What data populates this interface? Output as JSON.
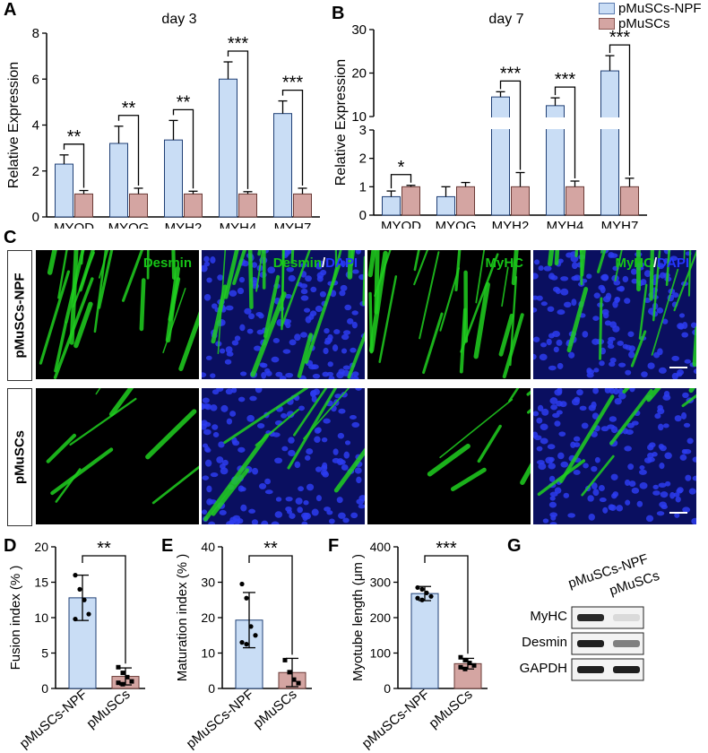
{
  "panels": {
    "A": "A",
    "B": "B",
    "C": "C",
    "D": "D",
    "E": "E",
    "F": "F",
    "G": "G"
  },
  "legend": {
    "items": [
      {
        "label": "pMuSCs-NPF",
        "color": "#c9ddf5"
      },
      {
        "label": "pMuSCs",
        "color": "#d4a5a2"
      }
    ]
  },
  "colors": {
    "npf": "#c9ddf5",
    "ctrl": "#d4a5a2",
    "desmin_green": "#17c417",
    "dapi_blue": "#2436ff"
  },
  "chart_data": [
    {
      "id": "A",
      "type": "bar",
      "title": "day 3",
      "ylabel": "Relative Expression",
      "xlabel": "",
      "ylim": [
        0,
        8
      ],
      "yticks": [
        0,
        2,
        4,
        6,
        8
      ],
      "categories": [
        "MYOD",
        "MYOG",
        "MYH2",
        "MYH4",
        "MYH7"
      ],
      "series": [
        {
          "name": "pMuSCs-NPF",
          "values": [
            2.3,
            3.2,
            3.35,
            6.0,
            4.5
          ],
          "errors": [
            0.4,
            0.75,
            0.85,
            0.75,
            0.55
          ]
        },
        {
          "name": "pMuSCs",
          "values": [
            1.0,
            1.0,
            1.0,
            1.0,
            1.0
          ],
          "errors": [
            0.15,
            0.25,
            0.12,
            0.1,
            0.25
          ]
        }
      ],
      "significance": [
        "**",
        "**",
        "**",
        "***",
        "***"
      ],
      "grid": false
    },
    {
      "id": "B",
      "type": "bar",
      "title": "day 7",
      "ylabel": "Relative Expression",
      "xlabel": "",
      "broken_axis": {
        "lower": [
          0,
          3
        ],
        "upper": [
          10,
          30
        ]
      },
      "yticks_lower": [
        0,
        1,
        2,
        3
      ],
      "yticks_upper": [
        10,
        20,
        30
      ],
      "categories": [
        "MYOD",
        "MYOG",
        "MYH2",
        "MYH4",
        "MYH7"
      ],
      "series": [
        {
          "name": "pMuSCs-NPF",
          "values": [
            0.65,
            0.65,
            14.5,
            12.5,
            20.5
          ],
          "errors": [
            0.2,
            0.35,
            1.2,
            1.8,
            3.5
          ]
        },
        {
          "name": "pMuSCs",
          "values": [
            1.0,
            1.0,
            1.0,
            1.0,
            1.0
          ],
          "errors": [
            0.05,
            0.15,
            0.5,
            0.2,
            0.3
          ]
        }
      ],
      "significance": [
        "*",
        "",
        "***",
        "***",
        "***"
      ],
      "grid": false
    },
    {
      "id": "D",
      "type": "bar",
      "ylabel": "Fusion index (% )",
      "ylim": [
        0,
        20
      ],
      "yticks": [
        0,
        5,
        10,
        15,
        20
      ],
      "categories": [
        "pMuSCs-NPF",
        "pMuSCs"
      ],
      "values": [
        12.8,
        1.7
      ],
      "errors": [
        3.2,
        1.2
      ],
      "points": [
        [
          16.0,
          14.0,
          12.5,
          10.5,
          9.8
        ],
        [
          3.0,
          2.2,
          1.6,
          1.0,
          0.8,
          0.6
        ]
      ],
      "significance": "**"
    },
    {
      "id": "E",
      "type": "bar",
      "ylabel": "Maturation index (% )",
      "ylim": [
        0,
        40
      ],
      "yticks": [
        0,
        10,
        20,
        30,
        40
      ],
      "categories": [
        "pMuSCs-NPF",
        "pMuSCs"
      ],
      "values": [
        19.3,
        4.5
      ],
      "errors": [
        7.8,
        4.0
      ],
      "points": [
        [
          29.5,
          25.5,
          17.5,
          15.0,
          13.0,
          12.5
        ],
        [
          8.0,
          4.6,
          2.5,
          1.5
        ]
      ],
      "significance": "**"
    },
    {
      "id": "F",
      "type": "bar",
      "ylabel": "Myotube length (μm )",
      "ylim": [
        0,
        400
      ],
      "yticks": [
        0,
        100,
        200,
        300,
        400
      ],
      "categories": [
        "pMuSCs-NPF",
        "pMuSCs"
      ],
      "values": [
        268,
        70
      ],
      "errors": [
        20,
        15
      ],
      "points": [
        [
          285,
          280,
          270,
          260,
          255,
          250
        ],
        [
          88,
          80,
          72,
          65,
          60,
          55
        ]
      ],
      "significance": "***"
    }
  ],
  "panelC": {
    "rows": [
      "pMuSCs-NPF",
      "pMuSCs"
    ],
    "columns": [
      {
        "stain": "Desmin",
        "overlay": ""
      },
      {
        "stain": "Desmin",
        "overlay": "DAPI"
      },
      {
        "stain": "MyHC",
        "overlay": ""
      },
      {
        "stain": "MyHC",
        "overlay": "DAPI"
      }
    ],
    "separator": "/"
  },
  "panelG": {
    "lane_labels": [
      "pMuSCs-NPF",
      "pMuSCs"
    ],
    "rows": [
      {
        "label": "MyHC",
        "lane_intensity": [
          0.9,
          0.08
        ]
      },
      {
        "label": "Desmin",
        "lane_intensity": [
          0.95,
          0.5
        ]
      },
      {
        "label": "GAPDH",
        "lane_intensity": [
          0.95,
          0.95
        ]
      }
    ]
  }
}
